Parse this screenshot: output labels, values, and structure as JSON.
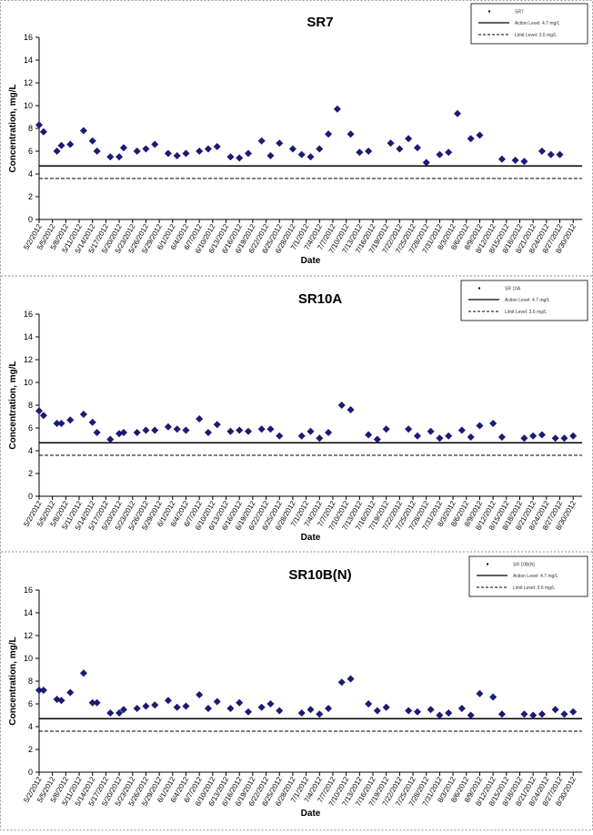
{
  "chart_data": [
    {
      "type": "scatter",
      "title": "SR7",
      "xlabel": "Date",
      "ylabel": "Concentration, mg/L",
      "ylim": [
        0,
        16
      ],
      "yticks": [
        0,
        2,
        4,
        6,
        8,
        10,
        12,
        14,
        16
      ],
      "xlim": [
        "2012-05-02",
        "2012-09-01"
      ],
      "xticks": [
        "5/2/2012",
        "5/5/2012",
        "5/8/2012",
        "5/11/2012",
        "5/14/2012",
        "5/17/2012",
        "5/20/2012",
        "5/23/2012",
        "5/26/2012",
        "5/29/2012",
        "6/1/2012",
        "6/4/2012",
        "6/7/2012",
        "6/10/2012",
        "6/13/2012",
        "6/16/2012",
        "6/19/2012",
        "6/22/2012",
        "6/25/2012",
        "6/28/2012",
        "7/1/2012",
        "7/4/2012",
        "7/7/2012",
        "7/10/2012",
        "7/13/2012",
        "7/16/2012",
        "7/19/2012",
        "7/22/2012",
        "7/25/2012",
        "7/28/2012",
        "7/31/2012",
        "8/3/2012",
        "8/6/2012",
        "8/9/2012",
        "8/12/2012",
        "8/15/2012",
        "8/18/2012",
        "8/21/2012",
        "8/24/2012",
        "8/27/2012",
        "8/30/2012"
      ],
      "legend_position": "top-right",
      "legend": [
        "SR7",
        "Action Level: 4.7 mg/L",
        "Limit Level: 3.6 mg/L"
      ],
      "reference_lines": [
        {
          "name": "Action Level: 4.7 mg/L",
          "value": 4.7,
          "style": "solid"
        },
        {
          "name": "Limit Level: 3.6 mg/L",
          "value": 3.6,
          "style": "dashed"
        }
      ],
      "grid": false,
      "marker_color": "#1a1a7a",
      "points": [
        {
          "x": "2012-05-02",
          "y": 8.3
        },
        {
          "x": "2012-05-03",
          "y": 7.7
        },
        {
          "x": "2012-05-06",
          "y": 6.0
        },
        {
          "x": "2012-05-07",
          "y": 6.5
        },
        {
          "x": "2012-05-09",
          "y": 6.6
        },
        {
          "x": "2012-05-12",
          "y": 7.8
        },
        {
          "x": "2012-05-14",
          "y": 6.9
        },
        {
          "x": "2012-05-15",
          "y": 6.0
        },
        {
          "x": "2012-05-18",
          "y": 5.5
        },
        {
          "x": "2012-05-20",
          "y": 5.5
        },
        {
          "x": "2012-05-21",
          "y": 6.3
        },
        {
          "x": "2012-05-24",
          "y": 6.0
        },
        {
          "x": "2012-05-26",
          "y": 6.2
        },
        {
          "x": "2012-05-28",
          "y": 6.6
        },
        {
          "x": "2012-05-31",
          "y": 5.8
        },
        {
          "x": "2012-06-02",
          "y": 5.6
        },
        {
          "x": "2012-06-04",
          "y": 5.8
        },
        {
          "x": "2012-06-07",
          "y": 6.0
        },
        {
          "x": "2012-06-09",
          "y": 6.2
        },
        {
          "x": "2012-06-11",
          "y": 6.4
        },
        {
          "x": "2012-06-14",
          "y": 5.5
        },
        {
          "x": "2012-06-16",
          "y": 5.4
        },
        {
          "x": "2012-06-18",
          "y": 5.8
        },
        {
          "x": "2012-06-21",
          "y": 6.9
        },
        {
          "x": "2012-06-23",
          "y": 5.6
        },
        {
          "x": "2012-06-25",
          "y": 6.7
        },
        {
          "x": "2012-06-28",
          "y": 6.2
        },
        {
          "x": "2012-06-30",
          "y": 5.7
        },
        {
          "x": "2012-07-02",
          "y": 5.5
        },
        {
          "x": "2012-07-04",
          "y": 6.2
        },
        {
          "x": "2012-07-06",
          "y": 7.5
        },
        {
          "x": "2012-07-08",
          "y": 9.7
        },
        {
          "x": "2012-07-11",
          "y": 7.5
        },
        {
          "x": "2012-07-13",
          "y": 5.9
        },
        {
          "x": "2012-07-15",
          "y": 6.0
        },
        {
          "x": "2012-07-20",
          "y": 6.7
        },
        {
          "x": "2012-07-22",
          "y": 6.2
        },
        {
          "x": "2012-07-24",
          "y": 7.1
        },
        {
          "x": "2012-07-26",
          "y": 6.3
        },
        {
          "x": "2012-07-28",
          "y": 5.0
        },
        {
          "x": "2012-07-31",
          "y": 5.7
        },
        {
          "x": "2012-08-02",
          "y": 5.9
        },
        {
          "x": "2012-08-04",
          "y": 9.3
        },
        {
          "x": "2012-08-07",
          "y": 7.1
        },
        {
          "x": "2012-08-09",
          "y": 7.4
        },
        {
          "x": "2012-08-14",
          "y": 5.3
        },
        {
          "x": "2012-08-17",
          "y": 5.2
        },
        {
          "x": "2012-08-19",
          "y": 5.1
        },
        {
          "x": "2012-08-23",
          "y": 6.0
        },
        {
          "x": "2012-08-25",
          "y": 5.7
        },
        {
          "x": "2012-08-27",
          "y": 5.7
        }
      ]
    },
    {
      "type": "scatter",
      "title": "SR10A",
      "xlabel": "Date",
      "ylabel": "Concentration, mg/L",
      "ylim": [
        0,
        16
      ],
      "yticks": [
        0,
        2,
        4,
        6,
        8,
        10,
        12,
        14,
        16
      ],
      "xlim": [
        "2012-05-02",
        "2012-09-01"
      ],
      "xticks": [
        "5/2/2012",
        "5/5/2012",
        "5/8/2012",
        "5/11/2012",
        "5/14/2012",
        "5/17/2012",
        "5/20/2012",
        "5/23/2012",
        "5/26/2012",
        "5/29/2012",
        "6/1/2012",
        "6/4/2012",
        "6/7/2012",
        "6/10/2012",
        "6/13/2012",
        "6/16/2012",
        "6/19/2012",
        "6/22/2012",
        "6/25/2012",
        "6/28/2012",
        "7/1/2012",
        "7/4/2012",
        "7/7/2012",
        "7/10/2012",
        "7/13/2012",
        "7/16/2012",
        "7/19/2012",
        "7/22/2012",
        "7/25/2012",
        "7/28/2012",
        "7/31/2012",
        "8/3/2012",
        "8/6/2012",
        "8/9/2012",
        "8/12/2012",
        "8/15/2012",
        "8/18/2012",
        "8/21/2012",
        "8/24/2012",
        "8/27/2012",
        "8/30/2012"
      ],
      "legend_position": "top-right",
      "legend": [
        "SR 10A",
        "Action Level: 4.7 mg/L",
        "Limit Level: 3.6 mg/L"
      ],
      "reference_lines": [
        {
          "name": "Action Level: 4.7 mg/L",
          "value": 4.7,
          "style": "solid"
        },
        {
          "name": "Limit Level: 3.6 mg/L",
          "value": 3.6,
          "style": "dashed"
        }
      ],
      "grid": false,
      "marker_color": "#1a1a7a",
      "points": [
        {
          "x": "2012-05-02",
          "y": 7.5
        },
        {
          "x": "2012-05-03",
          "y": 7.1
        },
        {
          "x": "2012-05-06",
          "y": 6.4
        },
        {
          "x": "2012-05-07",
          "y": 6.4
        },
        {
          "x": "2012-05-09",
          "y": 6.7
        },
        {
          "x": "2012-05-12",
          "y": 7.2
        },
        {
          "x": "2012-05-14",
          "y": 6.5
        },
        {
          "x": "2012-05-15",
          "y": 5.6
        },
        {
          "x": "2012-05-18",
          "y": 5.0
        },
        {
          "x": "2012-05-20",
          "y": 5.5
        },
        {
          "x": "2012-05-21",
          "y": 5.6
        },
        {
          "x": "2012-05-24",
          "y": 5.6
        },
        {
          "x": "2012-05-26",
          "y": 5.8
        },
        {
          "x": "2012-05-28",
          "y": 5.8
        },
        {
          "x": "2012-05-31",
          "y": 6.1
        },
        {
          "x": "2012-06-02",
          "y": 5.9
        },
        {
          "x": "2012-06-04",
          "y": 5.8
        },
        {
          "x": "2012-06-07",
          "y": 6.8
        },
        {
          "x": "2012-06-09",
          "y": 5.6
        },
        {
          "x": "2012-06-11",
          "y": 6.3
        },
        {
          "x": "2012-06-14",
          "y": 5.7
        },
        {
          "x": "2012-06-16",
          "y": 5.8
        },
        {
          "x": "2012-06-18",
          "y": 5.7
        },
        {
          "x": "2012-06-21",
          "y": 5.9
        },
        {
          "x": "2012-06-23",
          "y": 5.9
        },
        {
          "x": "2012-06-25",
          "y": 5.3
        },
        {
          "x": "2012-06-30",
          "y": 5.3
        },
        {
          "x": "2012-07-02",
          "y": 5.7
        },
        {
          "x": "2012-07-04",
          "y": 5.1
        },
        {
          "x": "2012-07-06",
          "y": 5.6
        },
        {
          "x": "2012-07-09",
          "y": 8.0
        },
        {
          "x": "2012-07-11",
          "y": 7.6
        },
        {
          "x": "2012-07-15",
          "y": 5.4
        },
        {
          "x": "2012-07-17",
          "y": 5.0
        },
        {
          "x": "2012-07-19",
          "y": 5.9
        },
        {
          "x": "2012-07-24",
          "y": 5.9
        },
        {
          "x": "2012-07-26",
          "y": 5.3
        },
        {
          "x": "2012-07-29",
          "y": 5.7
        },
        {
          "x": "2012-07-31",
          "y": 5.1
        },
        {
          "x": "2012-08-02",
          "y": 5.3
        },
        {
          "x": "2012-08-05",
          "y": 5.8
        },
        {
          "x": "2012-08-07",
          "y": 5.2
        },
        {
          "x": "2012-08-09",
          "y": 6.2
        },
        {
          "x": "2012-08-12",
          "y": 6.4
        },
        {
          "x": "2012-08-14",
          "y": 5.2
        },
        {
          "x": "2012-08-19",
          "y": 5.1
        },
        {
          "x": "2012-08-21",
          "y": 5.3
        },
        {
          "x": "2012-08-23",
          "y": 5.4
        },
        {
          "x": "2012-08-26",
          "y": 5.1
        },
        {
          "x": "2012-08-28",
          "y": 5.1
        },
        {
          "x": "2012-08-30",
          "y": 5.3
        }
      ]
    },
    {
      "type": "scatter",
      "title": "SR10B(N)",
      "xlabel": "Date",
      "ylabel": "Concentration, mg/L",
      "ylim": [
        0,
        16
      ],
      "yticks": [
        0,
        2,
        4,
        6,
        8,
        10,
        12,
        14,
        16
      ],
      "xlim": [
        "2012-05-02",
        "2012-09-01"
      ],
      "xticks": [
        "5/2/2012",
        "5/5/2012",
        "5/8/2012",
        "5/11/2012",
        "5/14/2012",
        "5/17/2012",
        "5/20/2012",
        "5/23/2012",
        "5/26/2012",
        "5/29/2012",
        "6/1/2012",
        "6/4/2012",
        "6/7/2012",
        "6/10/2012",
        "6/13/2012",
        "6/16/2012",
        "6/19/2012",
        "6/22/2012",
        "6/25/2012",
        "6/28/2012",
        "7/1/2012",
        "7/4/2012",
        "7/7/2012",
        "7/10/2012",
        "7/13/2012",
        "7/16/2012",
        "7/19/2012",
        "7/22/2012",
        "7/25/2012",
        "7/28/2012",
        "7/31/2012",
        "8/3/2012",
        "8/6/2012",
        "8/9/2012",
        "8/12/2012",
        "8/15/2012",
        "8/18/2012",
        "8/21/2012",
        "8/24/2012",
        "8/27/2012",
        "8/30/2012"
      ],
      "legend_position": "top-right",
      "legend": [
        "SR 10B(N)",
        "Action Level: 4.7 mg/L",
        "Limit Level: 3.6 mg/L"
      ],
      "reference_lines": [
        {
          "name": "Action Level: 4.7 mg/L",
          "value": 4.7,
          "style": "solid"
        },
        {
          "name": "Limit Level: 3.6 mg/L",
          "value": 3.6,
          "style": "dashed"
        }
      ],
      "grid": false,
      "marker_color": "#1a1a7a",
      "points": [
        {
          "x": "2012-05-02",
          "y": 7.2
        },
        {
          "x": "2012-05-03",
          "y": 7.2
        },
        {
          "x": "2012-05-06",
          "y": 6.4
        },
        {
          "x": "2012-05-07",
          "y": 6.3
        },
        {
          "x": "2012-05-09",
          "y": 7.0
        },
        {
          "x": "2012-05-12",
          "y": 8.7
        },
        {
          "x": "2012-05-14",
          "y": 6.1
        },
        {
          "x": "2012-05-15",
          "y": 6.1
        },
        {
          "x": "2012-05-18",
          "y": 5.2
        },
        {
          "x": "2012-05-20",
          "y": 5.2
        },
        {
          "x": "2012-05-21",
          "y": 5.5
        },
        {
          "x": "2012-05-24",
          "y": 5.6
        },
        {
          "x": "2012-05-26",
          "y": 5.8
        },
        {
          "x": "2012-05-28",
          "y": 5.9
        },
        {
          "x": "2012-05-31",
          "y": 6.3
        },
        {
          "x": "2012-06-02",
          "y": 5.7
        },
        {
          "x": "2012-06-04",
          "y": 5.8
        },
        {
          "x": "2012-06-07",
          "y": 6.8
        },
        {
          "x": "2012-06-09",
          "y": 5.6
        },
        {
          "x": "2012-06-11",
          "y": 6.2
        },
        {
          "x": "2012-06-14",
          "y": 5.6
        },
        {
          "x": "2012-06-16",
          "y": 6.1
        },
        {
          "x": "2012-06-18",
          "y": 5.3
        },
        {
          "x": "2012-06-21",
          "y": 5.7
        },
        {
          "x": "2012-06-23",
          "y": 6.0
        },
        {
          "x": "2012-06-25",
          "y": 5.4
        },
        {
          "x": "2012-06-30",
          "y": 5.2
        },
        {
          "x": "2012-07-02",
          "y": 5.5
        },
        {
          "x": "2012-07-04",
          "y": 5.1
        },
        {
          "x": "2012-07-06",
          "y": 5.6
        },
        {
          "x": "2012-07-09",
          "y": 7.9
        },
        {
          "x": "2012-07-11",
          "y": 8.2
        },
        {
          "x": "2012-07-15",
          "y": 6.0
        },
        {
          "x": "2012-07-17",
          "y": 5.4
        },
        {
          "x": "2012-07-19",
          "y": 5.7
        },
        {
          "x": "2012-07-24",
          "y": 5.4
        },
        {
          "x": "2012-07-26",
          "y": 5.3
        },
        {
          "x": "2012-07-29",
          "y": 5.5
        },
        {
          "x": "2012-07-31",
          "y": 5.0
        },
        {
          "x": "2012-08-02",
          "y": 5.2
        },
        {
          "x": "2012-08-05",
          "y": 5.6
        },
        {
          "x": "2012-08-07",
          "y": 5.0
        },
        {
          "x": "2012-08-09",
          "y": 6.9
        },
        {
          "x": "2012-08-12",
          "y": 6.6
        },
        {
          "x": "2012-08-14",
          "y": 5.1
        },
        {
          "x": "2012-08-19",
          "y": 5.1
        },
        {
          "x": "2012-08-21",
          "y": 5.0
        },
        {
          "x": "2012-08-23",
          "y": 5.1
        },
        {
          "x": "2012-08-26",
          "y": 5.5
        },
        {
          "x": "2012-08-28",
          "y": 5.1
        },
        {
          "x": "2012-08-30",
          "y": 5.3
        }
      ]
    }
  ]
}
